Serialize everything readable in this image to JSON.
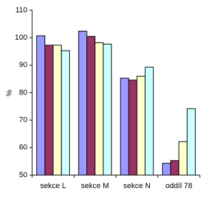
{
  "chart_data": {
    "type": "bar",
    "y_label": "%",
    "categories": [
      "sekce L",
      "sekce M",
      "sekce N",
      "oddíl 78"
    ],
    "series": [
      {
        "color": "#9999ff",
        "values": [
          100.7,
          102.4,
          85.3,
          54.3
        ]
      },
      {
        "color": "#993366",
        "values": [
          97.3,
          100.5,
          84.6,
          55.3
        ]
      },
      {
        "color": "#ffffcc",
        "values": [
          97.3,
          98.2,
          86.0,
          62.2
        ]
      },
      {
        "color": "#ccffff",
        "values": [
          95.3,
          97.7,
          89.3,
          74.2
        ]
      }
    ],
    "ylim": [
      50,
      110
    ],
    "yticks": [
      50,
      60,
      70,
      80,
      90,
      100,
      110
    ],
    "grid": false
  }
}
